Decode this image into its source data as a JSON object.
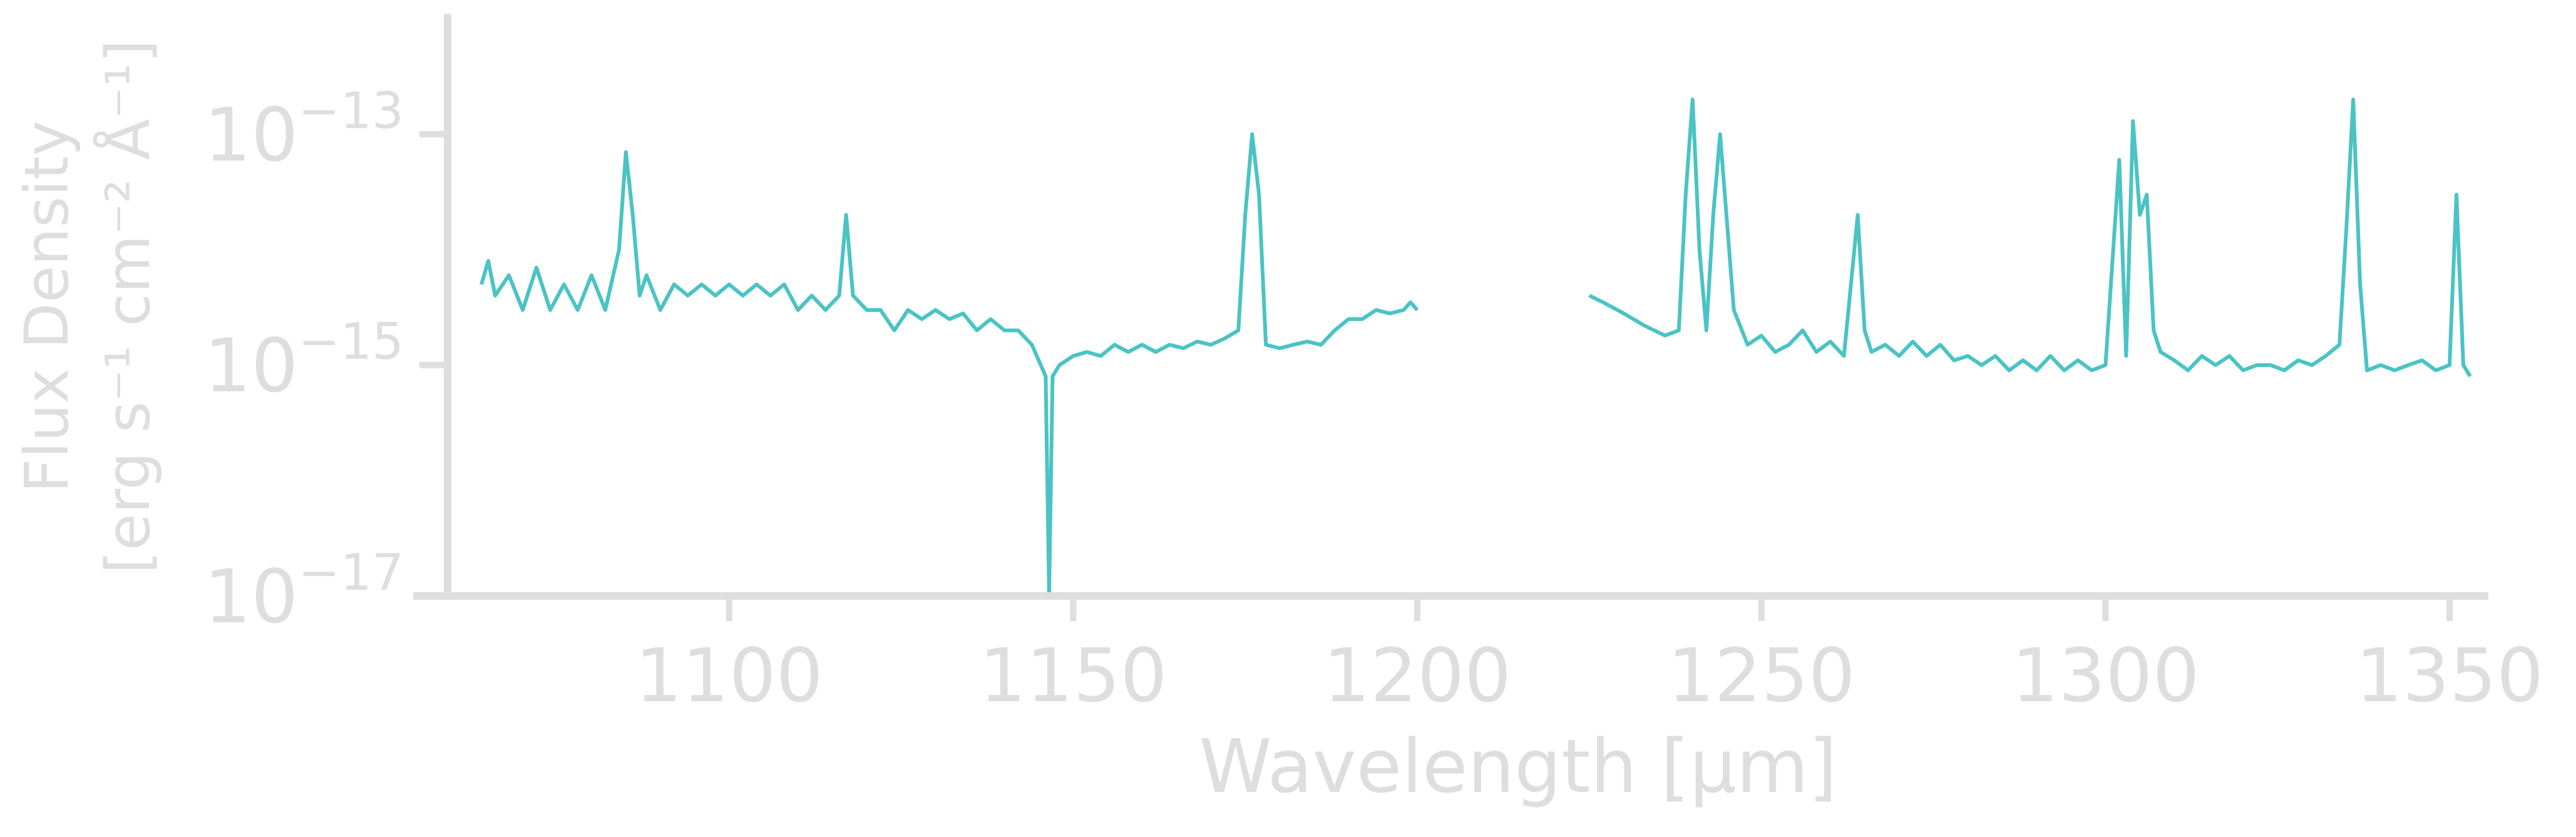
{
  "chart_data": {
    "type": "line",
    "xlabel": "Wavelength [μm]",
    "ylabel_line1": "Flux Density",
    "ylabel_line2": "[erg s⁻¹ cm⁻² Å⁻¹]",
    "xlim": [
      1063,
      1355
    ],
    "ylim": [
      1e-17,
      1e-12
    ],
    "yscale": "log",
    "grid": false,
    "x_ticks": [
      1100,
      1150,
      1200,
      1250,
      1300,
      1350
    ],
    "x_tick_labels": [
      "1100",
      "1150",
      "1200",
      "1250",
      "1300",
      "1350"
    ],
    "y_ticks": [
      1e-17,
      1e-15,
      1e-13
    ],
    "y_tick_labels": [
      {
        "base": "10",
        "exp": "−17"
      },
      {
        "base": "10",
        "exp": "−15"
      },
      {
        "base": "10",
        "exp": "−13"
      }
    ],
    "line_color": "#4bc3c4",
    "axis_color": "#dedede",
    "series": [
      {
        "segments": [
          {
            "x": [
              1064,
              1065,
              1066,
              1068,
              1070,
              1072,
              1074,
              1076,
              1078,
              1080,
              1082,
              1084,
              1085,
              1086,
              1087,
              1088,
              1090,
              1092,
              1094,
              1096,
              1098,
              1100,
              1102,
              1104,
              1106,
              1108,
              1110,
              1112,
              1114,
              1116,
              1117,
              1118,
              1120,
              1122,
              1124,
              1126,
              1128,
              1130,
              1132,
              1134,
              1136,
              1138,
              1140,
              1142,
              1144,
              1146,
              1146.5,
              1147,
              1148,
              1150,
              1152,
              1154,
              1156,
              1158,
              1160,
              1162,
              1164,
              1166,
              1168,
              1170,
              1172,
              1174,
              1175,
              1176,
              1177,
              1178,
              1180,
              1182,
              1184,
              1186,
              1188,
              1190,
              1192,
              1194,
              1196,
              1198,
              1199,
              1200
            ],
            "y": [
              5e-15,
              8e-15,
              4e-15,
              6e-15,
              3e-15,
              7e-15,
              3e-15,
              5e-15,
              3e-15,
              6e-15,
              3e-15,
              1e-14,
              7e-14,
              2e-14,
              4e-15,
              6e-15,
              3e-15,
              5e-15,
              4e-15,
              5e-15,
              4e-15,
              5e-15,
              4e-15,
              5e-15,
              4e-15,
              5e-15,
              3e-15,
              4e-15,
              3e-15,
              4e-15,
              2e-14,
              4e-15,
              3e-15,
              3e-15,
              2e-15,
              3e-15,
              2.5e-15,
              3e-15,
              2.5e-15,
              2.8e-15,
              2e-15,
              2.5e-15,
              2e-15,
              2e-15,
              1.5e-15,
              8e-16,
              1e-17,
              8e-16,
              1e-15,
              1.2e-15,
              1.3e-15,
              1.2e-15,
              1.5e-15,
              1.3e-15,
              1.5e-15,
              1.3e-15,
              1.5e-15,
              1.4e-15,
              1.6e-15,
              1.5e-15,
              1.7e-15,
              2e-15,
              2e-14,
              1e-13,
              3e-14,
              1.5e-15,
              1.4e-15,
              1.5e-15,
              1.6e-15,
              1.5e-15,
              2e-15,
              2.5e-15,
              2.5e-15,
              3e-15,
              2.8e-15,
              3e-15,
              3.5e-15,
              3e-15
            ]
          },
          {
            "x": [
              1225,
              1227,
              1230,
              1233,
              1236,
              1238,
              1239,
              1240,
              1241,
              1242,
              1243,
              1244,
              1246,
              1248,
              1250,
              1252,
              1254,
              1256,
              1258,
              1260,
              1262,
              1264,
              1265,
              1266,
              1268,
              1270,
              1272,
              1274,
              1276,
              1278,
              1280,
              1282,
              1284,
              1286,
              1288,
              1290,
              1292,
              1294,
              1296,
              1298,
              1300,
              1302,
              1303,
              1304,
              1305,
              1306,
              1307,
              1308,
              1310,
              1312,
              1314,
              1316,
              1318,
              1320,
              1322,
              1324,
              1326,
              1328,
              1330,
              1332,
              1334,
              1335,
              1336,
              1337,
              1338,
              1340,
              1342,
              1344,
              1346,
              1348,
              1350,
              1351,
              1352,
              1353
            ],
            "y": [
              4e-15,
              3.5e-15,
              2.8e-15,
              2.2e-15,
              1.8e-15,
              2e-15,
              3e-14,
              2e-13,
              1e-14,
              2e-15,
              2e-14,
              1e-13,
              3e-15,
              1.5e-15,
              1.8e-15,
              1.3e-15,
              1.5e-15,
              2e-15,
              1.3e-15,
              1.6e-15,
              1.2e-15,
              2e-14,
              2e-15,
              1.3e-15,
              1.5e-15,
              1.2e-15,
              1.6e-15,
              1.2e-15,
              1.5e-15,
              1.1e-15,
              1.2e-15,
              1e-15,
              1.2e-15,
              9e-16,
              1.1e-15,
              9e-16,
              1.2e-15,
              9e-16,
              1.1e-15,
              9e-16,
              1e-15,
              6e-14,
              1.2e-15,
              1.3e-13,
              2e-14,
              3e-14,
              2e-15,
              1.3e-15,
              1.1e-15,
              9e-16,
              1.2e-15,
              1e-15,
              1.2e-15,
              9e-16,
              1e-15,
              1e-15,
              9e-16,
              1.1e-15,
              1e-15,
              1.2e-15,
              1.5e-15,
              1.5e-14,
              2e-13,
              5e-15,
              9e-16,
              1e-15,
              9e-16,
              1e-15,
              1.1e-15,
              9e-16,
              1e-15,
              3e-14,
              1e-15,
              8e-16
            ]
          }
        ]
      }
    ]
  }
}
